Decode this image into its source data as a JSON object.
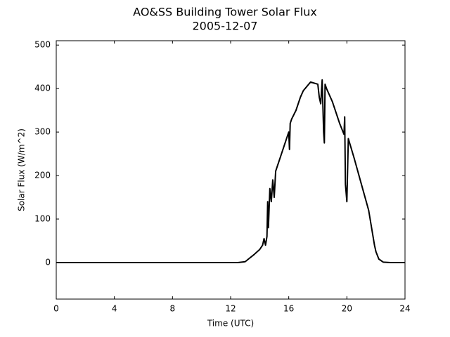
{
  "chart_data": {
    "type": "line",
    "title": "AO&SS Building Tower Solar Flux",
    "subtitle": "2005-12-07",
    "x_label": "Time (UTC)",
    "y_label": "Solar Flux (W/m^2)",
    "x": [
      0,
      12.5,
      13.0,
      13.3,
      13.6,
      14.0,
      14.2,
      14.3,
      14.4,
      14.5,
      14.55,
      14.6,
      14.7,
      14.8,
      14.9,
      15.0,
      15.1,
      15.5,
      15.8,
      16.0,
      16.05,
      16.1,
      16.2,
      16.5,
      16.8,
      17.0,
      17.5,
      18.0,
      18.1,
      18.2,
      18.3,
      18.4,
      18.45,
      18.5,
      18.6,
      19.0,
      19.5,
      19.8,
      19.85,
      19.9,
      20.0,
      20.1,
      20.5,
      21.0,
      21.5,
      21.9,
      22.0,
      22.2,
      22.5,
      23.0,
      24.0
    ],
    "series": [
      {
        "name": "Solar Flux",
        "color": "#000000",
        "values": [
          0,
          0,
          2,
          10,
          18,
          30,
          40,
          55,
          40,
          60,
          140,
          80,
          170,
          140,
          190,
          150,
          210,
          250,
          280,
          300,
          260,
          320,
          330,
          350,
          380,
          395,
          415,
          410,
          380,
          365,
          420,
          300,
          275,
          410,
          400,
          370,
          320,
          295,
          335,
          180,
          140,
          285,
          240,
          180,
          120,
          40,
          25,
          8,
          1,
          0,
          0
        ]
      }
    ],
    "xlim": [
      0,
      24
    ],
    "xticks": [
      0,
      4,
      8,
      12,
      16,
      20,
      24
    ],
    "ylim": [
      -84,
      510
    ],
    "yticks": [
      0,
      100,
      200,
      300,
      400,
      500
    ]
  }
}
